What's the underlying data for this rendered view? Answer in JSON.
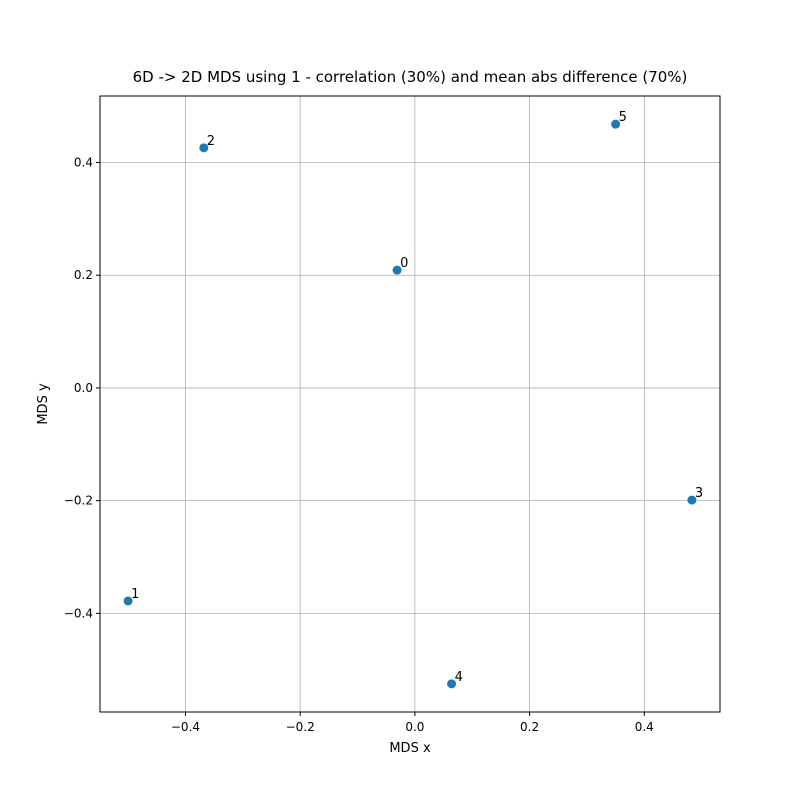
{
  "chart_data": {
    "type": "scatter",
    "title": "6D -> 2D MDS using 1 - correlation (30%) and mean abs difference (70%)",
    "xlabel": "MDS x",
    "ylabel": "MDS y",
    "x": [
      -0.031,
      -0.5,
      -0.368,
      0.483,
      0.064,
      0.35
    ],
    "y": [
      0.209,
      -0.378,
      0.426,
      -0.199,
      -0.525,
      0.468
    ],
    "labels": [
      "0",
      "1",
      "2",
      "3",
      "4",
      "5"
    ],
    "color": "#1f77b4",
    "xlim": [
      -0.549,
      0.532
    ],
    "ylim": [
      -0.575,
      0.518
    ],
    "xticks": [
      {
        "value": -0.4,
        "label": "−0.4"
      },
      {
        "value": -0.2,
        "label": "−0.2"
      },
      {
        "value": 0.0,
        "label": "0.0"
      },
      0.2,
      0.4
    ],
    "yticks": [
      {
        "value": -0.4,
        "label": "−0.4"
      },
      {
        "value": -0.2,
        "label": "−0.2"
      },
      {
        "value": 0.0,
        "label": "0.0"
      },
      0.2,
      0.4
    ],
    "grid": true
  }
}
